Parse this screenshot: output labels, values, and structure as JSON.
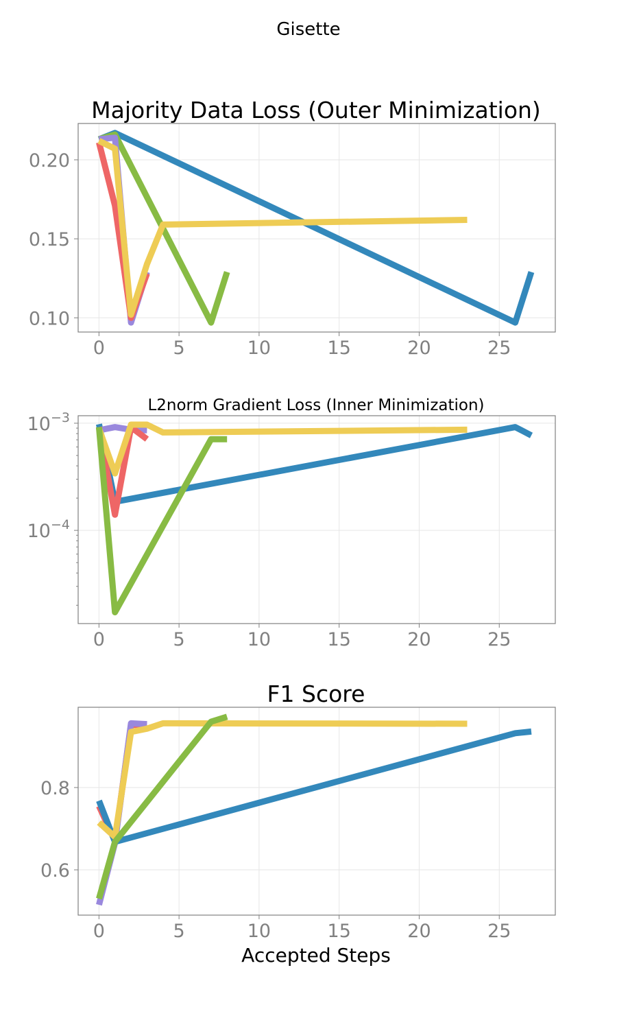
{
  "figure": {
    "suptitle": "Gisette"
  },
  "colors": {
    "red": "#ee6666",
    "purple": "#9988dd",
    "yellow": "#eecc55",
    "green": "#88bb44",
    "blue": "#3388bb"
  },
  "chart_data": [
    {
      "type": "line",
      "title": "Majority Data Loss (Outer Minimization)",
      "xlabel": "",
      "ylabel": "",
      "xlim": [
        -1.3,
        28.5
      ],
      "ylim": [
        0.091,
        0.223
      ],
      "xticks": [
        0,
        5,
        10,
        15,
        20,
        25
      ],
      "xtick_labels": [
        "0",
        "5",
        "10",
        "15",
        "20",
        "25"
      ],
      "yticks": [
        0.1,
        0.15,
        0.2
      ],
      "ytick_labels": [
        "0.10",
        "0.15",
        "0.20"
      ],
      "grid": true,
      "series": [
        {
          "color": "#3388bb",
          "x": [
            0,
            1,
            26,
            27
          ],
          "y": [
            0.213,
            0.217,
            0.097,
            0.129
          ]
        },
        {
          "color": "#88bb44",
          "x": [
            0,
            1,
            7,
            8
          ],
          "y": [
            0.213,
            0.216,
            0.097,
            0.129
          ]
        },
        {
          "color": "#9988dd",
          "x": [
            0,
            1,
            2,
            3
          ],
          "y": [
            0.213,
            0.214,
            0.097,
            0.129
          ]
        },
        {
          "color": "#ee6666",
          "x": [
            0,
            1,
            2,
            3
          ],
          "y": [
            0.211,
            0.171,
            0.1,
            0.128
          ]
        },
        {
          "color": "#eecc55",
          "x": [
            0,
            1,
            2,
            3,
            4,
            23
          ],
          "y": [
            0.212,
            0.207,
            0.102,
            0.134,
            0.159,
            0.162
          ]
        }
      ]
    },
    {
      "type": "line",
      "title": "L2norm Gradient Loss (Inner Minimization)",
      "xlabel": "",
      "ylabel": "",
      "yscale": "log",
      "xlim": [
        -1.3,
        28.5
      ],
      "ylim_log10": [
        -4.87,
        -2.93
      ],
      "xticks": [
        0,
        5,
        10,
        15,
        20,
        25
      ],
      "xtick_labels": [
        "0",
        "5",
        "10",
        "15",
        "20",
        "25"
      ],
      "yticks_log10": [
        -4,
        -3
      ],
      "ytick_bases": [
        "10",
        "10"
      ],
      "ytick_exps": [
        "−4",
        "−3"
      ],
      "grid": true,
      "series": [
        {
          "color": "#3388bb",
          "x": [
            0,
            1,
            26,
            27
          ],
          "y": [
            0.00098,
            0.000185,
            0.00092,
            0.00077
          ]
        },
        {
          "color": "#9988dd",
          "x": [
            0,
            1,
            2,
            3
          ],
          "y": [
            0.00086,
            0.00092,
            0.00087,
            0.00086
          ]
        },
        {
          "color": "#ee6666",
          "x": [
            0,
            1,
            2,
            3
          ],
          "y": [
            0.00092,
            0.00014,
            0.00092,
            0.00071
          ]
        },
        {
          "color": "#eecc55",
          "x": [
            0,
            1,
            2,
            3,
            4,
            23
          ],
          "y": [
            0.00089,
            0.00034,
            0.00097,
            0.00097,
            0.00082,
            0.00087
          ]
        },
        {
          "color": "#88bb44",
          "x": [
            0,
            1,
            7,
            8
          ],
          "y": [
            0.00092,
            1.72e-05,
            0.00071,
            0.00071
          ]
        }
      ]
    },
    {
      "type": "line",
      "title": "F1 Score",
      "xlabel": "Accepted Steps",
      "ylabel": "",
      "xlim": [
        -1.3,
        28.5
      ],
      "ylim": [
        0.49,
        0.995
      ],
      "xticks": [
        0,
        5,
        10,
        15,
        20,
        25
      ],
      "xtick_labels": [
        "0",
        "5",
        "10",
        "15",
        "20",
        "25"
      ],
      "yticks": [
        0.6,
        0.8
      ],
      "ytick_labels": [
        "0.6",
        "0.8"
      ],
      "grid": true,
      "series": [
        {
          "color": "#ee6666",
          "x": [
            0,
            1,
            2,
            3
          ],
          "y": [
            0.755,
            0.67,
            0.952,
            0.952
          ]
        },
        {
          "color": "#9988dd",
          "x": [
            0,
            1,
            2,
            3
          ],
          "y": [
            0.515,
            0.665,
            0.956,
            0.954
          ]
        },
        {
          "color": "#3388bb",
          "x": [
            0,
            1,
            26,
            27
          ],
          "y": [
            0.768,
            0.668,
            0.932,
            0.936
          ]
        },
        {
          "color": "#eecc55",
          "x": [
            0,
            1,
            2,
            3,
            4,
            23
          ],
          "y": [
            0.715,
            0.68,
            0.935,
            0.943,
            0.956,
            0.955
          ]
        },
        {
          "color": "#88bb44",
          "x": [
            0,
            1,
            7,
            8
          ],
          "y": [
            0.53,
            0.668,
            0.96,
            0.972
          ]
        }
      ]
    }
  ]
}
